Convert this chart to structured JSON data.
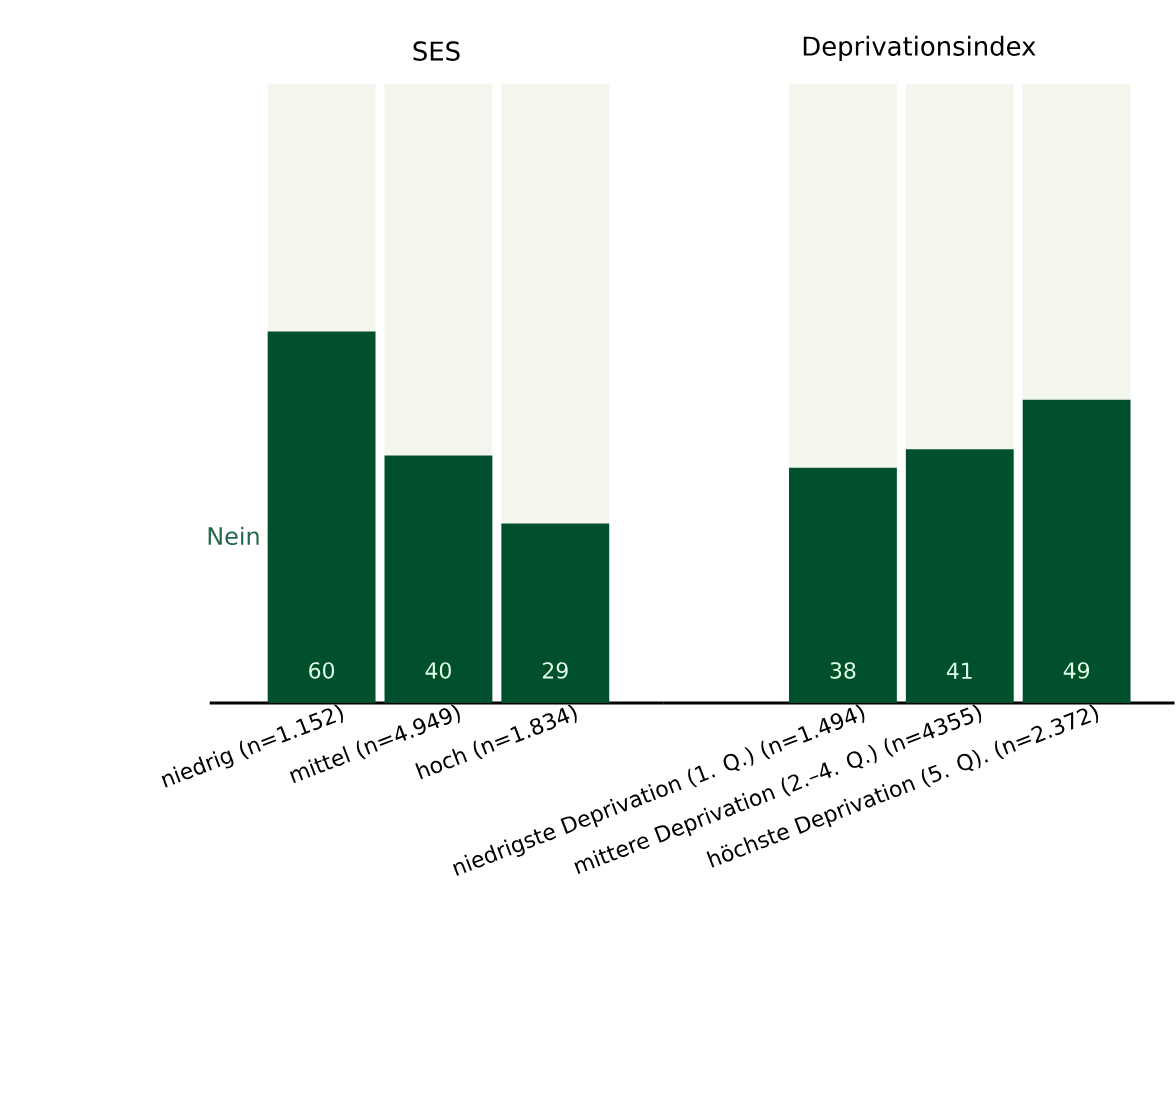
{
  "chart_data": [
    {
      "type": "bar",
      "title": "SES",
      "stacked": true,
      "ylim": [
        0,
        100
      ],
      "tick_labels": "x",
      "categories": [
        "niedrig (n=1.152)",
        "mittel (n=4.949)",
        "hoch (n=1.834)"
      ],
      "series": [
        {
          "name": "Nein",
          "color": "#00502e",
          "values": [
            60,
            40,
            29
          ],
          "value_labels": [
            "60",
            "40",
            "29"
          ]
        },
        {
          "color": "#f2f6ec",
          "values": [
            40,
            60,
            71
          ]
        }
      ]
    },
    {
      "type": "bar",
      "title": "Deprivationsindex",
      "stacked": true,
      "ylim": [
        0,
        100
      ],
      "tick_labels": "x",
      "categories": [
        "niedrigste Deprivation (1. Q.) (n=1.494)",
        "mittere Deprivation (2.–4. Q.) (n=4355)",
        "höchste Deprivation (5. Q). (n=2.372)"
      ],
      "series": [
        {
          "color": "#00502e",
          "values": [
            38,
            41,
            49
          ],
          "value_labels": [
            "38",
            "41",
            "49"
          ]
        },
        {
          "color": "#f2f6ec",
          "values": [
            62,
            59,
            51
          ]
        }
      ]
    }
  ]
}
